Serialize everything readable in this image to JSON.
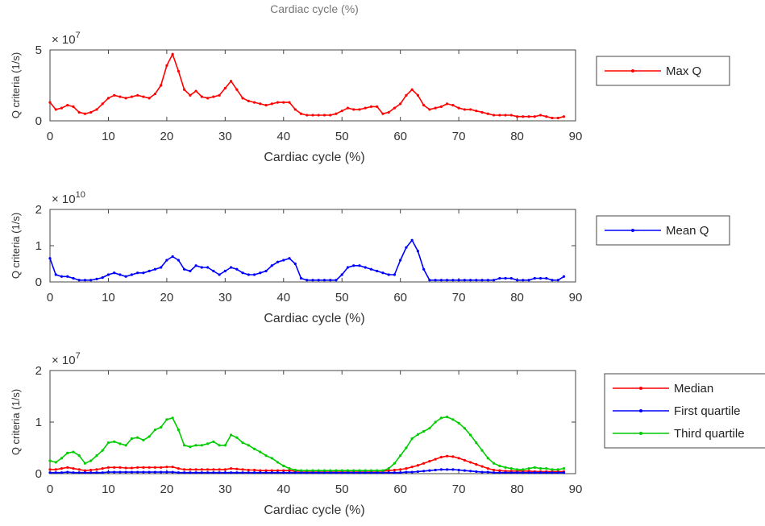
{
  "figure_top_caption": "Cardiac cycle (%)",
  "chart_data": [
    {
      "type": "line",
      "xlabel": "Cardiac cycle (%)",
      "ylabel": "Q criteria (1/s)",
      "exponent_label": "× 10",
      "exponent": "7",
      "xlim": [
        0,
        90
      ],
      "ylim": [
        0,
        5
      ],
      "xticks": [
        0,
        10,
        20,
        30,
        40,
        50,
        60,
        70,
        80,
        90
      ],
      "yticks": [
        0,
        5
      ],
      "legend_position": "right",
      "series": [
        {
          "name": "Max Q",
          "color": "#ff0000",
          "x": [
            0,
            1,
            2,
            3,
            4,
            5,
            6,
            7,
            8,
            9,
            10,
            11,
            12,
            13,
            14,
            15,
            16,
            17,
            18,
            19,
            20,
            21,
            22,
            23,
            24,
            25,
            26,
            27,
            28,
            29,
            30,
            31,
            32,
            33,
            34,
            35,
            36,
            37,
            38,
            39,
            40,
            41,
            42,
            43,
            44,
            45,
            46,
            47,
            48,
            49,
            50,
            51,
            52,
            53,
            54,
            55,
            56,
            57,
            58,
            59,
            60,
            61,
            62,
            63,
            64,
            65,
            66,
            67,
            68,
            69,
            70,
            71,
            72,
            73,
            74,
            75,
            76,
            77,
            78,
            79,
            80,
            81,
            82,
            83,
            84,
            85,
            86,
            87,
            88
          ],
          "values": [
            1.3,
            0.8,
            0.9,
            1.1,
            1.0,
            0.6,
            0.5,
            0.6,
            0.8,
            1.2,
            1.6,
            1.8,
            1.7,
            1.6,
            1.7,
            1.8,
            1.7,
            1.6,
            1.9,
            2.5,
            3.9,
            4.7,
            3.5,
            2.2,
            1.8,
            2.1,
            1.7,
            1.6,
            1.7,
            1.8,
            2.3,
            2.8,
            2.2,
            1.6,
            1.4,
            1.3,
            1.2,
            1.1,
            1.2,
            1.3,
            1.3,
            1.3,
            0.8,
            0.5,
            0.4,
            0.4,
            0.4,
            0.4,
            0.4,
            0.5,
            0.7,
            0.9,
            0.8,
            0.8,
            0.9,
            1.0,
            1.0,
            0.5,
            0.6,
            0.9,
            1.2,
            1.8,
            2.2,
            1.8,
            1.1,
            0.8,
            0.9,
            1.0,
            1.2,
            1.1,
            0.9,
            0.8,
            0.8,
            0.7,
            0.6,
            0.5,
            0.4,
            0.4,
            0.4,
            0.4,
            0.3,
            0.3,
            0.3,
            0.3,
            0.4,
            0.3,
            0.2,
            0.2,
            0.3
          ]
        }
      ]
    },
    {
      "type": "line",
      "xlabel": "Cardiac cycle (%)",
      "ylabel": "Q criteria (1/s)",
      "exponent_label": "× 10",
      "exponent": "10",
      "xlim": [
        0,
        90
      ],
      "ylim": [
        0,
        2
      ],
      "xticks": [
        0,
        10,
        20,
        30,
        40,
        50,
        60,
        70,
        80,
        90
      ],
      "yticks": [
        0,
        1,
        2
      ],
      "legend_position": "right",
      "series": [
        {
          "name": "Mean Q",
          "color": "#0000ff",
          "x": [
            0,
            1,
            2,
            3,
            4,
            5,
            6,
            7,
            8,
            9,
            10,
            11,
            12,
            13,
            14,
            15,
            16,
            17,
            18,
            19,
            20,
            21,
            22,
            23,
            24,
            25,
            26,
            27,
            28,
            29,
            30,
            31,
            32,
            33,
            34,
            35,
            36,
            37,
            38,
            39,
            40,
            41,
            42,
            43,
            44,
            45,
            46,
            47,
            48,
            49,
            50,
            51,
            52,
            53,
            54,
            55,
            56,
            57,
            58,
            59,
            60,
            61,
            62,
            63,
            64,
            65,
            66,
            67,
            68,
            69,
            70,
            71,
            72,
            73,
            74,
            75,
            76,
            77,
            78,
            79,
            80,
            81,
            82,
            83,
            84,
            85,
            86,
            87,
            88
          ],
          "values": [
            0.65,
            0.2,
            0.15,
            0.15,
            0.1,
            0.05,
            0.05,
            0.05,
            0.08,
            0.12,
            0.2,
            0.25,
            0.2,
            0.15,
            0.2,
            0.25,
            0.25,
            0.3,
            0.35,
            0.4,
            0.6,
            0.7,
            0.6,
            0.35,
            0.3,
            0.45,
            0.4,
            0.4,
            0.3,
            0.2,
            0.3,
            0.4,
            0.35,
            0.25,
            0.2,
            0.2,
            0.25,
            0.3,
            0.45,
            0.55,
            0.6,
            0.65,
            0.5,
            0.1,
            0.05,
            0.05,
            0.05,
            0.05,
            0.05,
            0.05,
            0.2,
            0.4,
            0.45,
            0.45,
            0.4,
            0.35,
            0.3,
            0.25,
            0.2,
            0.2,
            0.6,
            0.95,
            1.15,
            0.85,
            0.35,
            0.05,
            0.05,
            0.05,
            0.05,
            0.05,
            0.05,
            0.05,
            0.05,
            0.05,
            0.05,
            0.05,
            0.05,
            0.1,
            0.1,
            0.1,
            0.05,
            0.05,
            0.05,
            0.1,
            0.1,
            0.1,
            0.05,
            0.05,
            0.15
          ]
        }
      ]
    },
    {
      "type": "line",
      "xlabel": "Cardiac cycle (%)",
      "ylabel": "Q criteria (1/s)",
      "exponent_label": "× 10",
      "exponent": "7",
      "xlim": [
        0,
        90
      ],
      "ylim": [
        0,
        2
      ],
      "xticks": [
        0,
        10,
        20,
        30,
        40,
        50,
        60,
        70,
        80,
        90
      ],
      "yticks": [
        0,
        1,
        2
      ],
      "legend_position": "right",
      "series": [
        {
          "name": "Median",
          "color": "#ff0000",
          "x": [
            0,
            1,
            2,
            3,
            4,
            5,
            6,
            7,
            8,
            9,
            10,
            11,
            12,
            13,
            14,
            15,
            16,
            17,
            18,
            19,
            20,
            21,
            22,
            23,
            24,
            25,
            26,
            27,
            28,
            29,
            30,
            31,
            32,
            33,
            34,
            35,
            36,
            37,
            38,
            39,
            40,
            41,
            42,
            43,
            44,
            45,
            46,
            47,
            48,
            49,
            50,
            51,
            52,
            53,
            54,
            55,
            56,
            57,
            58,
            59,
            60,
            61,
            62,
            63,
            64,
            65,
            66,
            67,
            68,
            69,
            70,
            71,
            72,
            73,
            74,
            75,
            76,
            77,
            78,
            79,
            80,
            81,
            82,
            83,
            84,
            85,
            86,
            87,
            88
          ],
          "values": [
            0.08,
            0.08,
            0.1,
            0.12,
            0.1,
            0.08,
            0.06,
            0.07,
            0.08,
            0.1,
            0.12,
            0.12,
            0.12,
            0.11,
            0.11,
            0.12,
            0.12,
            0.12,
            0.12,
            0.12,
            0.13,
            0.13,
            0.1,
            0.08,
            0.08,
            0.08,
            0.08,
            0.08,
            0.08,
            0.08,
            0.08,
            0.1,
            0.09,
            0.08,
            0.07,
            0.07,
            0.06,
            0.06,
            0.06,
            0.06,
            0.06,
            0.06,
            0.05,
            0.05,
            0.05,
            0.05,
            0.05,
            0.05,
            0.05,
            0.05,
            0.05,
            0.05,
            0.05,
            0.05,
            0.05,
            0.05,
            0.05,
            0.05,
            0.06,
            0.07,
            0.08,
            0.1,
            0.13,
            0.16,
            0.2,
            0.24,
            0.28,
            0.32,
            0.34,
            0.33,
            0.3,
            0.26,
            0.22,
            0.18,
            0.14,
            0.1,
            0.07,
            0.06,
            0.05,
            0.05,
            0.05,
            0.05,
            0.05,
            0.04,
            0.04,
            0.04,
            0.04,
            0.04,
            0.04
          ]
        },
        {
          "name": "First quartile",
          "color": "#0000ff",
          "x": [
            0,
            1,
            2,
            3,
            4,
            5,
            6,
            7,
            8,
            9,
            10,
            11,
            12,
            13,
            14,
            15,
            16,
            17,
            18,
            19,
            20,
            21,
            22,
            23,
            24,
            25,
            26,
            27,
            28,
            29,
            30,
            31,
            32,
            33,
            34,
            35,
            36,
            37,
            38,
            39,
            40,
            41,
            42,
            43,
            44,
            45,
            46,
            47,
            48,
            49,
            50,
            51,
            52,
            53,
            54,
            55,
            56,
            57,
            58,
            59,
            60,
            61,
            62,
            63,
            64,
            65,
            66,
            67,
            68,
            69,
            70,
            71,
            72,
            73,
            74,
            75,
            76,
            77,
            78,
            79,
            80,
            81,
            82,
            83,
            84,
            85,
            86,
            87,
            88
          ],
          "values": [
            0.02,
            0.02,
            0.02,
            0.03,
            0.02,
            0.02,
            0.02,
            0.02,
            0.02,
            0.02,
            0.03,
            0.03,
            0.03,
            0.03,
            0.03,
            0.03,
            0.03,
            0.03,
            0.03,
            0.03,
            0.03,
            0.03,
            0.02,
            0.02,
            0.02,
            0.02,
            0.02,
            0.02,
            0.02,
            0.02,
            0.02,
            0.02,
            0.02,
            0.02,
            0.02,
            0.02,
            0.02,
            0.02,
            0.02,
            0.02,
            0.02,
            0.02,
            0.02,
            0.02,
            0.02,
            0.02,
            0.02,
            0.02,
            0.02,
            0.02,
            0.02,
            0.02,
            0.02,
            0.02,
            0.02,
            0.02,
            0.02,
            0.02,
            0.02,
            0.02,
            0.02,
            0.03,
            0.03,
            0.04,
            0.05,
            0.06,
            0.07,
            0.08,
            0.08,
            0.08,
            0.07,
            0.06,
            0.05,
            0.04,
            0.03,
            0.03,
            0.02,
            0.02,
            0.02,
            0.02,
            0.02,
            0.02,
            0.02,
            0.02,
            0.02,
            0.02,
            0.02,
            0.02,
            0.02
          ]
        },
        {
          "name": "Third quartile",
          "color": "#00cc00",
          "x": [
            0,
            1,
            2,
            3,
            4,
            5,
            6,
            7,
            8,
            9,
            10,
            11,
            12,
            13,
            14,
            15,
            16,
            17,
            18,
            19,
            20,
            21,
            22,
            23,
            24,
            25,
            26,
            27,
            28,
            29,
            30,
            31,
            32,
            33,
            34,
            35,
            36,
            37,
            38,
            39,
            40,
            41,
            42,
            43,
            44,
            45,
            46,
            47,
            48,
            49,
            50,
            51,
            52,
            53,
            54,
            55,
            56,
            57,
            58,
            59,
            60,
            61,
            62,
            63,
            64,
            65,
            66,
            67,
            68,
            69,
            70,
            71,
            72,
            73,
            74,
            75,
            76,
            77,
            78,
            79,
            80,
            81,
            82,
            83,
            84,
            85,
            86,
            87,
            88
          ],
          "values": [
            0.25,
            0.22,
            0.3,
            0.4,
            0.42,
            0.35,
            0.2,
            0.25,
            0.35,
            0.45,
            0.6,
            0.62,
            0.58,
            0.55,
            0.68,
            0.7,
            0.65,
            0.72,
            0.85,
            0.9,
            1.05,
            1.08,
            0.85,
            0.55,
            0.52,
            0.55,
            0.55,
            0.58,
            0.62,
            0.55,
            0.55,
            0.75,
            0.7,
            0.6,
            0.55,
            0.48,
            0.42,
            0.35,
            0.3,
            0.22,
            0.15,
            0.1,
            0.07,
            0.06,
            0.06,
            0.06,
            0.06,
            0.06,
            0.06,
            0.06,
            0.06,
            0.06,
            0.06,
            0.06,
            0.06,
            0.06,
            0.06,
            0.06,
            0.1,
            0.2,
            0.35,
            0.5,
            0.68,
            0.76,
            0.82,
            0.88,
            1.0,
            1.08,
            1.1,
            1.05,
            0.98,
            0.88,
            0.75,
            0.6,
            0.45,
            0.3,
            0.2,
            0.15,
            0.12,
            0.1,
            0.08,
            0.08,
            0.1,
            0.12,
            0.1,
            0.1,
            0.08,
            0.08,
            0.1
          ]
        }
      ]
    }
  ]
}
